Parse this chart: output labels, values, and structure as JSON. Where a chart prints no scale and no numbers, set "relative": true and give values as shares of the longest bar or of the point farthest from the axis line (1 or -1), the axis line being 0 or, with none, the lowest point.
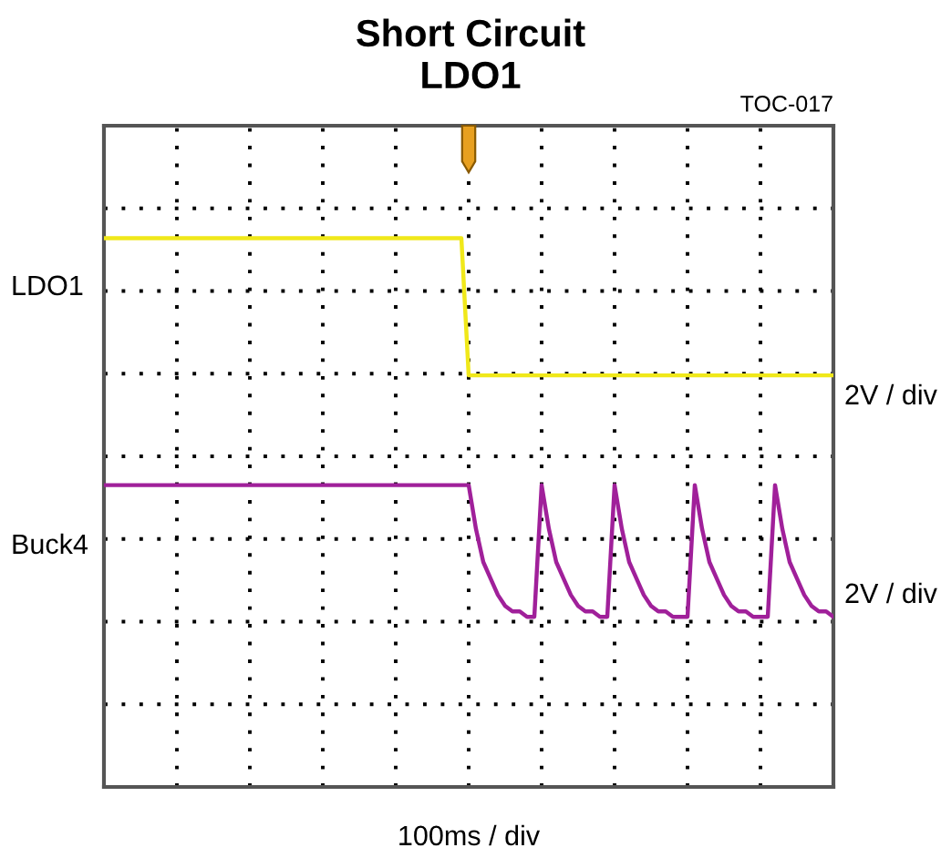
{
  "chart_data": {
    "type": "line",
    "title": "Short Circuit",
    "subtitle": "LDO1",
    "relative": true,
    "grid": true,
    "legend": false,
    "line_style": "solid",
    "marker": "none",
    "categories": [
      null,
      null,
      null,
      null,
      null,
      null,
      null,
      null,
      null,
      null,
      null,
      null,
      null,
      null,
      null,
      null,
      null,
      null,
      null,
      null,
      null,
      null,
      null,
      null,
      null,
      null,
      null,
      null,
      null,
      null,
      null,
      null,
      null,
      null,
      null,
      null,
      null,
      null,
      null,
      null,
      null,
      null,
      null,
      null,
      null,
      null,
      null,
      null,
      null,
      null,
      null,
      null,
      null,
      null,
      null,
      null,
      null,
      null,
      null,
      null,
      null,
      null,
      null,
      null,
      null,
      null,
      null,
      null,
      null,
      null,
      null,
      null,
      null,
      null,
      null,
      null,
      null,
      null,
      null,
      null,
      null,
      null,
      null,
      null,
      null,
      null,
      null,
      null,
      null,
      null,
      null,
      null,
      null,
      null,
      null,
      null,
      null,
      null,
      null,
      null,
      null
    ],
    "series": [
      {
        "name": "LDO1",
        "color": "#f0e81a",
        "values": [
          1,
          1,
          1,
          1,
          1,
          1,
          1,
          1,
          1,
          1,
          1,
          1,
          1,
          1,
          1,
          1,
          1,
          1,
          1,
          1,
          1,
          1,
          1,
          1,
          1,
          1,
          1,
          1,
          1,
          1,
          1,
          1,
          1,
          1,
          1,
          1,
          1,
          1,
          1,
          1,
          1,
          1,
          1,
          1,
          1,
          1,
          1,
          1,
          1,
          1,
          0.75,
          0.75,
          0.75,
          0.75,
          0.75,
          0.75,
          0.75,
          0.75,
          0.75,
          0.75,
          0.75,
          0.75,
          0.75,
          0.75,
          0.75,
          0.75,
          0.75,
          0.75,
          0.75,
          0.75,
          0.75,
          0.75,
          0.75,
          0.75,
          0.75,
          0.75,
          0.75,
          0.75,
          0.75,
          0.75,
          0.75,
          0.75,
          0.75,
          0.75,
          0.75,
          0.75,
          0.75,
          0.75,
          0.75,
          0.75,
          0.75,
          0.75,
          0.75,
          0.75,
          0.75,
          0.75,
          0.75,
          0.75,
          0.75,
          0.75,
          0.75
        ]
      },
      {
        "name": "Buck4",
        "color": "#a0209a",
        "values": [
          0.55,
          0.55,
          0.55,
          0.55,
          0.55,
          0.55,
          0.55,
          0.55,
          0.55,
          0.55,
          0.55,
          0.55,
          0.55,
          0.55,
          0.55,
          0.55,
          0.55,
          0.55,
          0.55,
          0.55,
          0.55,
          0.55,
          0.55,
          0.55,
          0.55,
          0.55,
          0.55,
          0.55,
          0.55,
          0.55,
          0.55,
          0.55,
          0.55,
          0.55,
          0.55,
          0.55,
          0.55,
          0.55,
          0.55,
          0.55,
          0.55,
          0.55,
          0.55,
          0.55,
          0.55,
          0.55,
          0.55,
          0.55,
          0.55,
          0.55,
          0.55,
          0.47,
          0.41,
          0.38,
          0.35,
          0.33,
          0.32,
          0.32,
          0.31,
          0.31,
          0.55,
          0.47,
          0.41,
          0.38,
          0.35,
          0.33,
          0.32,
          0.32,
          0.31,
          0.31,
          0.55,
          0.47,
          0.41,
          0.38,
          0.35,
          0.33,
          0.32,
          0.32,
          0.31,
          0.31,
          0.31,
          0.55,
          0.47,
          0.41,
          0.38,
          0.35,
          0.33,
          0.32,
          0.32,
          0.31,
          0.31,
          0.31,
          0.55,
          0.47,
          0.41,
          0.38,
          0.35,
          0.33,
          0.32,
          0.32,
          0.31
        ]
      }
    ],
    "annotations": [
      "TOC-017",
      "2V / div",
      "2V / div",
      "100ms / div"
    ]
  }
}
